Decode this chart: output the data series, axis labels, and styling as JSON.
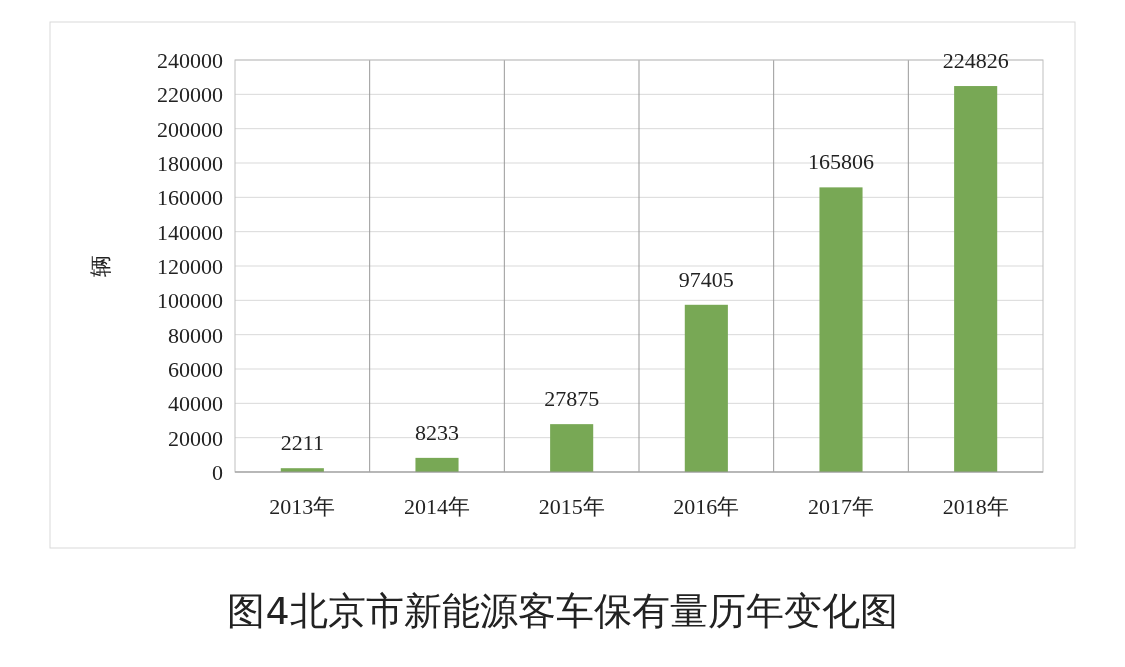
{
  "chart_data": {
    "type": "bar",
    "title": "图4北京市新能源客车保有量历年变化图",
    "ylabel": "辆",
    "categories": [
      "2013年",
      "2014年",
      "2015年",
      "2016年",
      "2017年",
      "2018年"
    ],
    "values": [
      2211,
      8233,
      27875,
      97405,
      165806,
      224826
    ],
    "color": "#78a855",
    "ylim": [
      0,
      240000
    ],
    "yticks": [
      0,
      20000,
      40000,
      60000,
      80000,
      100000,
      120000,
      140000,
      160000,
      180000,
      200000,
      220000,
      240000
    ],
    "grid": true,
    "data_labels": true
  }
}
